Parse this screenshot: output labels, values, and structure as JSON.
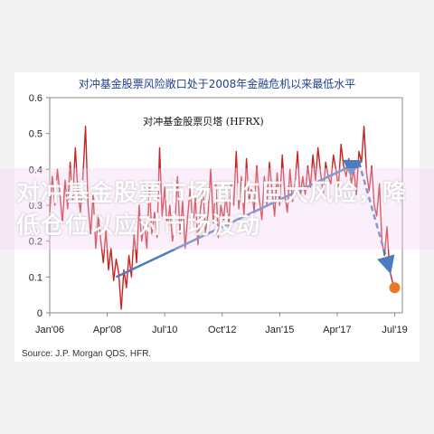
{
  "header": {
    "title": "对冲基金股票风险敞口处于2008年金融危机以来最低水平"
  },
  "overlay": {
    "text": "对冲基金股票市场面临巨大风险，降低仓位以应对市场波动"
  },
  "source": "Source: J.P. Morgan QDS, HFR.",
  "colors": {
    "line": "#cc2222",
    "trend_arrow": "#4a7cc0",
    "end_marker": "#ee7722",
    "title": "#1f3f8f"
  },
  "chart_data": {
    "type": "line",
    "title": "对冲基金股票贝塔 (HFRX)",
    "xlabel": "",
    "ylabel": "",
    "ylim": [
      0,
      0.6
    ],
    "yticks": [
      "0",
      "0.1",
      "0.2",
      "0.3",
      "0.4",
      "0.5",
      "0.6"
    ],
    "xlim": [
      2006.0,
      2019.8
    ],
    "xticks": [
      {
        "label": "Jan'06",
        "x": 2006.0
      },
      {
        "label": "Apr'08",
        "x": 2008.25
      },
      {
        "label": "Jul'10",
        "x": 2010.5
      },
      {
        "label": "Oct'12",
        "x": 2012.75
      },
      {
        "label": "Jan'15",
        "x": 2015.0
      },
      {
        "label": "Apr'17",
        "x": 2017.25
      },
      {
        "label": "Jul'19",
        "x": 2019.5
      }
    ],
    "grid": false,
    "series": [
      {
        "name": "",
        "x": [
          2006.0,
          2006.1,
          2006.2,
          2006.3,
          2006.4,
          2006.5,
          2006.6,
          2006.7,
          2006.8,
          2006.9,
          2007.0,
          2007.1,
          2007.2,
          2007.3,
          2007.4,
          2007.5,
          2007.6,
          2007.7,
          2007.8,
          2007.9,
          2008.0,
          2008.1,
          2008.2,
          2008.3,
          2008.4,
          2008.5,
          2008.6,
          2008.7,
          2008.8,
          2008.9,
          2009.0,
          2009.1,
          2009.2,
          2009.3,
          2009.4,
          2009.5,
          2009.6,
          2009.7,
          2009.8,
          2009.9,
          2010.0,
          2010.1,
          2010.2,
          2010.3,
          2010.4,
          2010.5,
          2010.6,
          2010.7,
          2010.8,
          2010.9,
          2011.0,
          2011.1,
          2011.2,
          2011.3,
          2011.4,
          2011.5,
          2011.6,
          2011.7,
          2011.8,
          2011.9,
          2012.0,
          2012.1,
          2012.2,
          2012.3,
          2012.4,
          2012.5,
          2012.6,
          2012.7,
          2012.8,
          2012.9,
          2013.0,
          2013.1,
          2013.2,
          2013.3,
          2013.4,
          2013.5,
          2013.6,
          2013.7,
          2013.8,
          2013.9,
          2014.0,
          2014.1,
          2014.2,
          2014.3,
          2014.4,
          2014.5,
          2014.6,
          2014.7,
          2014.8,
          2014.9,
          2015.0,
          2015.1,
          2015.2,
          2015.3,
          2015.4,
          2015.5,
          2015.6,
          2015.7,
          2015.8,
          2015.9,
          2016.0,
          2016.1,
          2016.2,
          2016.3,
          2016.4,
          2016.5,
          2016.6,
          2016.7,
          2016.8,
          2016.9,
          2017.0,
          2017.1,
          2017.2,
          2017.3,
          2017.4,
          2017.5,
          2017.6,
          2017.7,
          2017.8,
          2017.9,
          2018.0,
          2018.1,
          2018.2,
          2018.3,
          2018.4,
          2018.5,
          2018.6,
          2018.7,
          2018.8,
          2018.9,
          2019.0,
          2019.1,
          2019.2,
          2019.3,
          2019.4,
          2019.5
        ],
        "y": [
          0.28,
          0.38,
          0.3,
          0.4,
          0.33,
          0.25,
          0.37,
          0.29,
          0.42,
          0.31,
          0.46,
          0.34,
          0.28,
          0.38,
          0.52,
          0.3,
          0.22,
          0.33,
          0.18,
          0.27,
          0.2,
          0.14,
          0.23,
          0.12,
          0.18,
          0.09,
          0.15,
          0.11,
          0.01,
          0.12,
          0.07,
          0.16,
          0.1,
          0.22,
          0.14,
          0.3,
          0.2,
          0.25,
          0.18,
          0.35,
          0.22,
          0.28,
          0.21,
          0.46,
          0.27,
          0.35,
          0.23,
          0.3,
          0.2,
          0.25,
          0.38,
          0.22,
          0.31,
          0.18,
          0.27,
          0.35,
          0.24,
          0.32,
          0.19,
          0.29,
          0.34,
          0.22,
          0.28,
          0.4,
          0.25,
          0.36,
          0.21,
          0.3,
          0.26,
          0.33,
          0.24,
          0.36,
          0.3,
          0.45,
          0.29,
          0.38,
          0.27,
          0.43,
          0.31,
          0.35,
          0.28,
          0.41,
          0.32,
          0.26,
          0.38,
          0.3,
          0.42,
          0.34,
          0.27,
          0.39,
          0.3,
          0.44,
          0.33,
          0.28,
          0.4,
          0.31,
          0.36,
          0.45,
          0.32,
          0.38,
          0.33,
          0.41,
          0.35,
          0.44,
          0.37,
          0.46,
          0.39,
          0.33,
          0.42,
          0.38,
          0.36,
          0.44,
          0.4,
          0.35,
          0.47,
          0.41,
          0.38,
          0.43,
          0.36,
          0.4,
          0.33,
          0.45,
          0.42,
          0.52,
          0.39,
          0.34,
          0.41,
          0.3,
          0.27,
          0.36,
          0.2,
          0.16,
          0.24,
          0.12,
          0.09,
          0.07
        ]
      }
    ],
    "annotations": {
      "trend_up": {
        "from": {
          "x": 2008.6,
          "y": 0.1
        },
        "to": {
          "x": 2018.1,
          "y": 0.42
        }
      },
      "trend_down": {
        "from": {
          "x": 2018.1,
          "y": 0.42
        },
        "to": {
          "x": 2019.3,
          "y": 0.12
        }
      },
      "end_point": {
        "x": 2019.5,
        "y": 0.07
      }
    }
  }
}
